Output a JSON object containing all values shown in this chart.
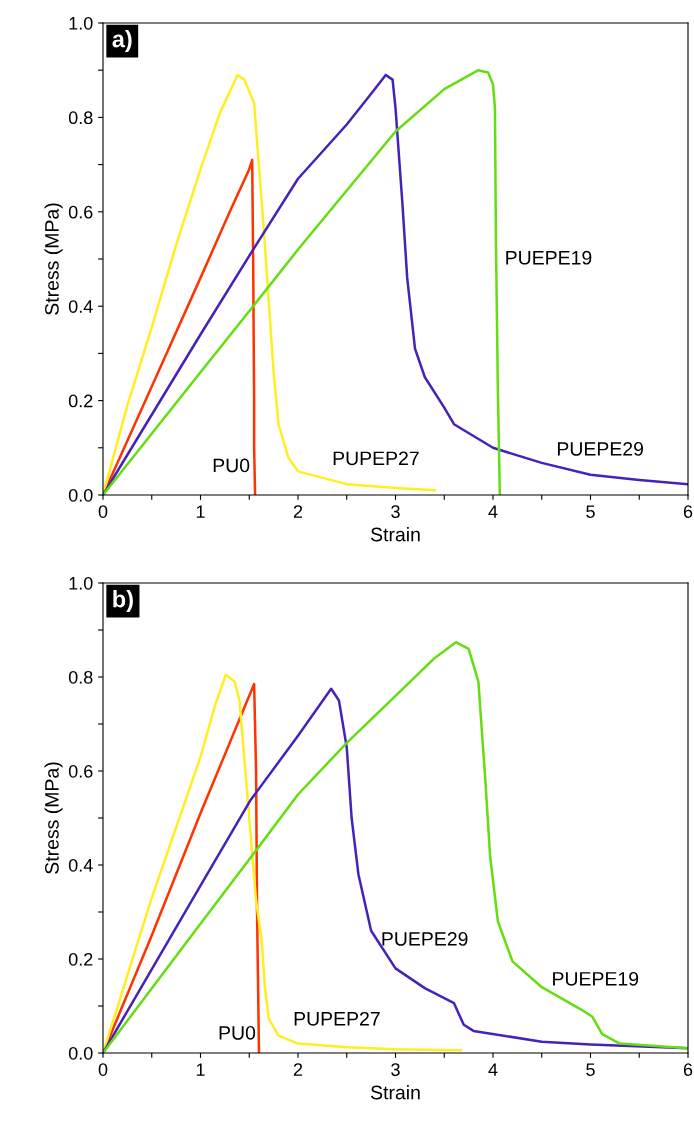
{
  "chart_data": [
    {
      "type": "line",
      "xlabel": "Strain",
      "ylabel": "Stress (MPa)",
      "annotations": [
        "a)"
      ],
      "xlim": [
        0,
        6
      ],
      "ylim": [
        0,
        1
      ],
      "xticks": [
        0,
        {
          "value": 0.5,
          "label": null
        },
        1,
        {
          "value": 1.5,
          "label": null
        },
        2,
        {
          "value": 2.5,
          "label": null
        },
        3,
        {
          "value": 3.5,
          "label": null
        },
        4,
        {
          "value": 4.5,
          "label": null
        },
        5,
        {
          "value": 5.5,
          "label": null
        },
        6
      ],
      "yticks": [
        {
          "value": 0,
          "label": "0.0"
        },
        {
          "value": 0.1,
          "label": null
        },
        0.2,
        {
          "value": 0.3,
          "label": null
        },
        0.4,
        {
          "value": 0.5,
          "label": null
        },
        0.6,
        {
          "value": 0.7,
          "label": null
        },
        0.8,
        {
          "value": 0.9,
          "label": null
        },
        {
          "value": 1,
          "label": "1.0"
        }
      ],
      "grid": false,
      "legend": false,
      "series": [
        {
          "name": "PU0",
          "color": "#ff3300",
          "x": [
            0,
            0.5,
            1,
            1.3,
            1.5,
            1.53,
            1.54,
            1.55,
            1.55,
            1.56
          ],
          "values": [
            0,
            0.23,
            0.46,
            0.6,
            0.69,
            0.71,
            0.5,
            0.2,
            0.1,
            0
          ]
        },
        {
          "name": "PUPEP27",
          "color": "#ffee22",
          "x": [
            0,
            0.25,
            0.5,
            0.75,
            1,
            1.2,
            1.38,
            1.45,
            1.55,
            1.65,
            1.7,
            1.75,
            1.8,
            1.9,
            2,
            2.5,
            3,
            3.4
          ],
          "values": [
            0,
            0.19,
            0.355,
            0.53,
            0.69,
            0.81,
            0.89,
            0.88,
            0.83,
            0.56,
            0.41,
            0.26,
            0.15,
            0.08,
            0.05,
            0.023,
            0.015,
            0.01
          ]
        },
        {
          "name": "PUEPE29",
          "color": "#4422bb",
          "x": [
            0,
            0.5,
            1,
            1.54,
            2,
            2.5,
            2.75,
            2.9,
            2.97,
            3,
            3.07,
            3.12,
            3.2,
            3.3,
            3.5,
            3.6,
            4,
            4.5,
            5,
            5.5,
            6
          ],
          "values": [
            0,
            0.17,
            0.34,
            0.52,
            0.67,
            0.785,
            0.85,
            0.89,
            0.88,
            0.82,
            0.62,
            0.46,
            0.31,
            0.25,
            0.185,
            0.15,
            0.1,
            0.068,
            0.043,
            0.032,
            0.023
          ]
        },
        {
          "name": "PUEPE19",
          "color": "#66dd11",
          "x": [
            0,
            1,
            1.54,
            2,
            2.5,
            3,
            3.5,
            3.85,
            3.95,
            4,
            4.02,
            4.03,
            4.05,
            4.07
          ],
          "values": [
            0,
            0.26,
            0.4,
            0.52,
            0.645,
            0.77,
            0.86,
            0.9,
            0.895,
            0.87,
            0.82,
            0.54,
            0.22,
            0
          ]
        }
      ]
    },
    {
      "type": "line",
      "xlabel": "Strain",
      "ylabel": "Stress (MPa)",
      "annotations": [
        "b)"
      ],
      "xlim": [
        0,
        6
      ],
      "ylim": [
        0,
        1
      ],
      "xticks": [
        0,
        {
          "value": 0.5,
          "label": null
        },
        1,
        {
          "value": 1.5,
          "label": null
        },
        2,
        {
          "value": 2.5,
          "label": null
        },
        3,
        {
          "value": 3.5,
          "label": null
        },
        4,
        {
          "value": 4.5,
          "label": null
        },
        5,
        {
          "value": 5.5,
          "label": null
        },
        6
      ],
      "yticks": [
        {
          "value": 0,
          "label": "0.0"
        },
        {
          "value": 0.1,
          "label": null
        },
        0.2,
        {
          "value": 0.3,
          "label": null
        },
        0.4,
        {
          "value": 0.5,
          "label": null
        },
        0.6,
        {
          "value": 0.7,
          "label": null
        },
        0.8,
        {
          "value": 0.9,
          "label": null
        },
        {
          "value": 1,
          "label": "1.0"
        }
      ],
      "grid": false,
      "legend": false,
      "series": [
        {
          "name": "PU0",
          "color": "#ff3300",
          "x": [
            0,
            0.5,
            1,
            1.4,
            1.55,
            1.57,
            1.58,
            1.6
          ],
          "values": [
            0,
            0.25,
            0.51,
            0.71,
            0.785,
            0.6,
            0.3,
            0
          ]
        },
        {
          "name": "PUPEP27",
          "color": "#ffee22",
          "x": [
            0,
            0.5,
            1,
            1.15,
            1.26,
            1.35,
            1.4,
            1.5,
            1.57,
            1.63,
            1.66,
            1.7,
            1.8,
            2,
            2.5,
            3,
            3.67
          ],
          "values": [
            0,
            0.33,
            0.63,
            0.74,
            0.805,
            0.79,
            0.75,
            0.5,
            0.325,
            0.235,
            0.14,
            0.073,
            0.037,
            0.02,
            0.012,
            0.008,
            0.006
          ]
        },
        {
          "name": "PUEPE29",
          "color": "#4422bb",
          "x": [
            0,
            1,
            1.51,
            2,
            2.34,
            2.42,
            2.5,
            2.55,
            2.62,
            2.75,
            3,
            3.3,
            3.6,
            3.7,
            3.8,
            4.5,
            5,
            6
          ],
          "values": [
            0,
            0.356,
            0.537,
            0.675,
            0.775,
            0.75,
            0.65,
            0.5,
            0.38,
            0.26,
            0.18,
            0.138,
            0.106,
            0.06,
            0.047,
            0.024,
            0.018,
            0.01
          ]
        },
        {
          "name": "PUEPE19",
          "color": "#66dd11",
          "x": [
            0,
            1,
            1.53,
            2,
            2.5,
            3,
            3.4,
            3.62,
            3.75,
            3.85,
            3.92,
            3.97,
            4.05,
            4.2,
            4.5,
            4.9,
            5.02,
            5.12,
            5.3,
            6
          ],
          "values": [
            0,
            0.275,
            0.42,
            0.55,
            0.66,
            0.76,
            0.84,
            0.874,
            0.86,
            0.79,
            0.585,
            0.42,
            0.28,
            0.195,
            0.14,
            0.093,
            0.077,
            0.04,
            0.02,
            0.01
          ]
        }
      ]
    }
  ]
}
